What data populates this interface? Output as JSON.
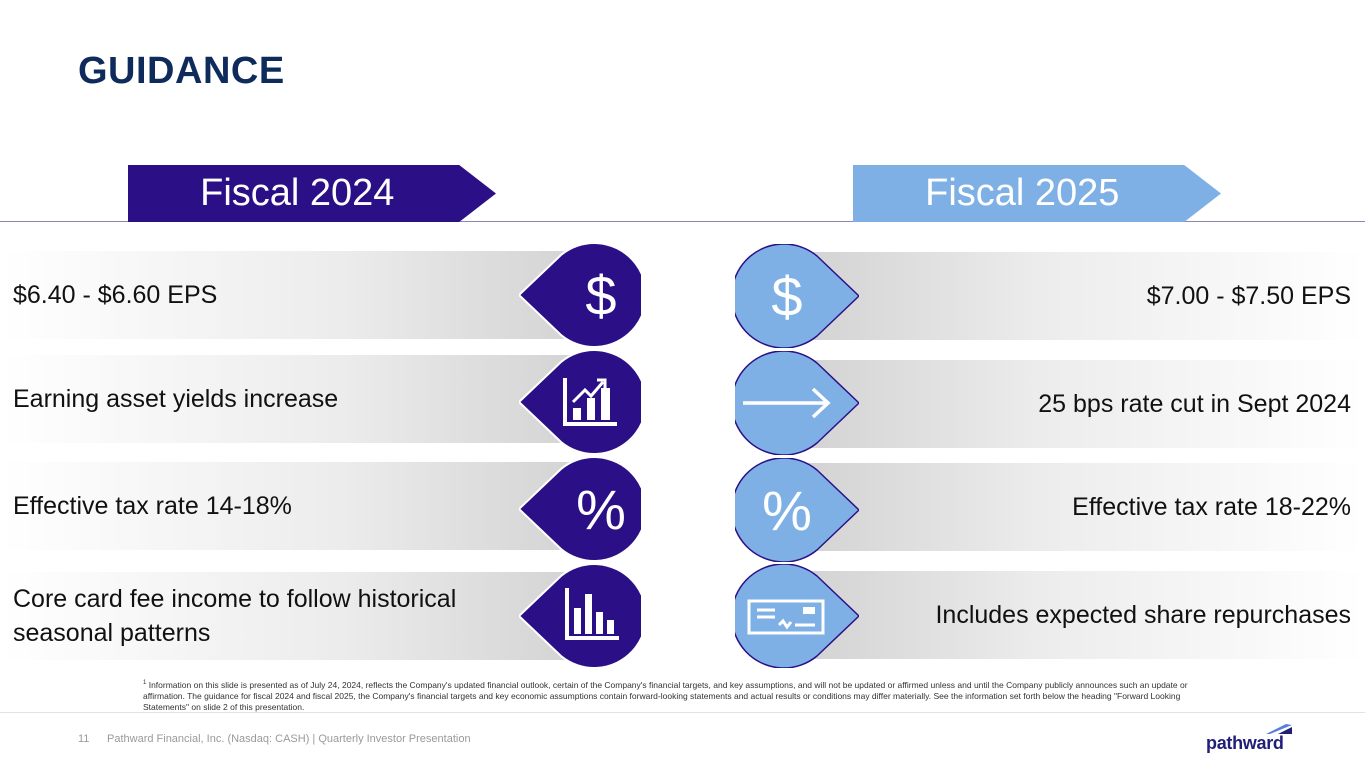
{
  "title": "GUIDANCE",
  "columns": {
    "fiscal_2024": {
      "label": "Fiscal 2024",
      "items": [
        {
          "text": "$6.40 - $6.60 EPS",
          "icon": "dollar-icon"
        },
        {
          "text": "Earning asset yields increase",
          "icon": "growth-chart-icon"
        },
        {
          "text": "Effective tax rate 14-18%",
          "icon": "percent-icon"
        },
        {
          "text": "Core card fee income to follow historical seasonal patterns",
          "icon": "bar-chart-icon"
        }
      ]
    },
    "fiscal_2025": {
      "label": "Fiscal 2025",
      "items": [
        {
          "text": "$7.00 - $7.50 EPS",
          "icon": "dollar-icon"
        },
        {
          "text": "25 bps rate cut in Sept 2024",
          "icon": "arrow-right-icon"
        },
        {
          "text": "Effective tax rate 18-22%",
          "icon": "percent-icon"
        },
        {
          "text": "Includes expected share repurchases",
          "icon": "check-icon"
        }
      ]
    }
  },
  "glyphs": {
    "dollar": "$",
    "percent": "%"
  },
  "footnote": {
    "marker": "1",
    "text": "Information on this slide is presented as of July 24, 2024, reflects the Company's updated financial outlook, certain of the Company's financial targets, and key assumptions, and will not be updated or affirmed unless and until the Company publicly announces such an update or affirmation. The guidance for fiscal 2024 and fiscal 2025, the Company's financial targets and key economic assumptions contain forward-looking statements and actual results or conditions may differ materially. See the information set forth below the heading \"Forward Looking Statements\" on slide 2 of this presentation."
  },
  "footer": {
    "page_number": "11",
    "company": "Pathward Financial, Inc. (Nasdaq: CASH) | Quarterly Investor Presentation",
    "logo_text": "pathward"
  },
  "colors": {
    "fiscal_2024": "#2b0f86",
    "fiscal_2025": "#7eb0e6",
    "title": "#0f2b5b"
  }
}
